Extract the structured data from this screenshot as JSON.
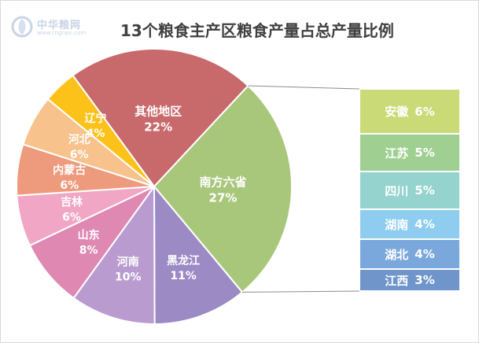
{
  "watermark": {
    "brand": "中华粮网",
    "url": "www.cngrain.com"
  },
  "chart_data": {
    "type": "pie",
    "title": "13个粮食主产区粮食产量占总产量比例",
    "slices": [
      {
        "label": "南方六省",
        "value": 27,
        "display": "27%",
        "color": "#a9c77b"
      },
      {
        "label": "黑龙江",
        "value": 11,
        "display": "11%",
        "color": "#9b8ac4"
      },
      {
        "label": "河南",
        "value": 10,
        "display": "10%",
        "color": "#b99bd0"
      },
      {
        "label": "山东",
        "value": 8,
        "display": "8%",
        "color": "#de88b2"
      },
      {
        "label": "吉林",
        "value": 6,
        "display": "6%",
        "color": "#f0a6c4"
      },
      {
        "label": "内蒙古",
        "value": 6,
        "display": "6%",
        "color": "#ee9a7c"
      },
      {
        "label": "河北",
        "value": 6,
        "display": "6%",
        "color": "#f7c28c"
      },
      {
        "label": "辽宁",
        "value": 4,
        "display": "4%",
        "color": "#fdc21a"
      },
      {
        "label": "其他地区",
        "value": 22,
        "display": "22%",
        "color": "#c8696c"
      }
    ],
    "breakdown": {
      "parent": "南方六省",
      "items": [
        {
          "label": "安徽",
          "value": 6,
          "display": "6%",
          "color": "#c9da76"
        },
        {
          "label": "江苏",
          "value": 5,
          "display": "5%",
          "color": "#9fcf91"
        },
        {
          "label": "四川",
          "value": 5,
          "display": "5%",
          "color": "#94d3ce"
        },
        {
          "label": "湖南",
          "value": 4,
          "display": "4%",
          "color": "#8fcdf0"
        },
        {
          "label": "湖北",
          "value": 4,
          "display": "4%",
          "color": "#7aa8dc"
        },
        {
          "label": "江西",
          "value": 3,
          "display": "3%",
          "color": "#6f95cb"
        }
      ]
    }
  }
}
